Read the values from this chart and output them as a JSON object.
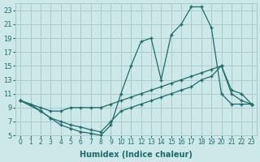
{
  "xlabel": "Humidex (Indice chaleur)",
  "bg_color": "#cce8e8",
  "grid_color": "#aacccc",
  "line_color": "#1f6b6b",
  "xlim": [
    -0.5,
    23.5
  ],
  "ylim": [
    5,
    24
  ],
  "xticks": [
    0,
    1,
    2,
    3,
    4,
    5,
    6,
    7,
    8,
    9,
    10,
    11,
    12,
    13,
    14,
    15,
    16,
    17,
    18,
    19,
    20,
    21,
    22,
    23
  ],
  "yticks": [
    5,
    7,
    9,
    11,
    13,
    15,
    17,
    19,
    21,
    23
  ],
  "line1_x": [
    0,
    1,
    2,
    3,
    4,
    5,
    6,
    7,
    8,
    9,
    10,
    11,
    12,
    13,
    14,
    15,
    16,
    17,
    18,
    19,
    20,
    21,
    22,
    23
  ],
  "line1_y": [
    10,
    9.5,
    8.5,
    7.5,
    6.5,
    6.0,
    5.5,
    5.3,
    5.0,
    6.5,
    11,
    15,
    18.5,
    19.0,
    13.0,
    19.5,
    21.0,
    23.5,
    23.5,
    20.5,
    11.0,
    9.5,
    9.5,
    9.5
  ],
  "line2_x": [
    0,
    2,
    3,
    4,
    5,
    6,
    7,
    8,
    9,
    10,
    11,
    12,
    13,
    14,
    15,
    16,
    17,
    18,
    19,
    20,
    21,
    22,
    23
  ],
  "line2_y": [
    10,
    9.0,
    8.5,
    8.5,
    9.0,
    9.0,
    9.0,
    9.0,
    9.5,
    10.0,
    10.5,
    11.0,
    11.5,
    12.0,
    12.5,
    13.0,
    13.5,
    14.0,
    14.5,
    15.0,
    11.0,
    10.0,
    9.5
  ],
  "line3_x": [
    0,
    2,
    3,
    4,
    5,
    6,
    7,
    8,
    9,
    10,
    11,
    12,
    13,
    14,
    15,
    16,
    17,
    18,
    19,
    20,
    21,
    22,
    23
  ],
  "line3_y": [
    10,
    8.5,
    7.5,
    7.0,
    6.5,
    6.2,
    5.8,
    5.5,
    7.0,
    8.5,
    9.0,
    9.5,
    10.0,
    10.5,
    11.0,
    11.5,
    12.0,
    13.0,
    13.5,
    15.0,
    11.5,
    11.0,
    9.5
  ]
}
